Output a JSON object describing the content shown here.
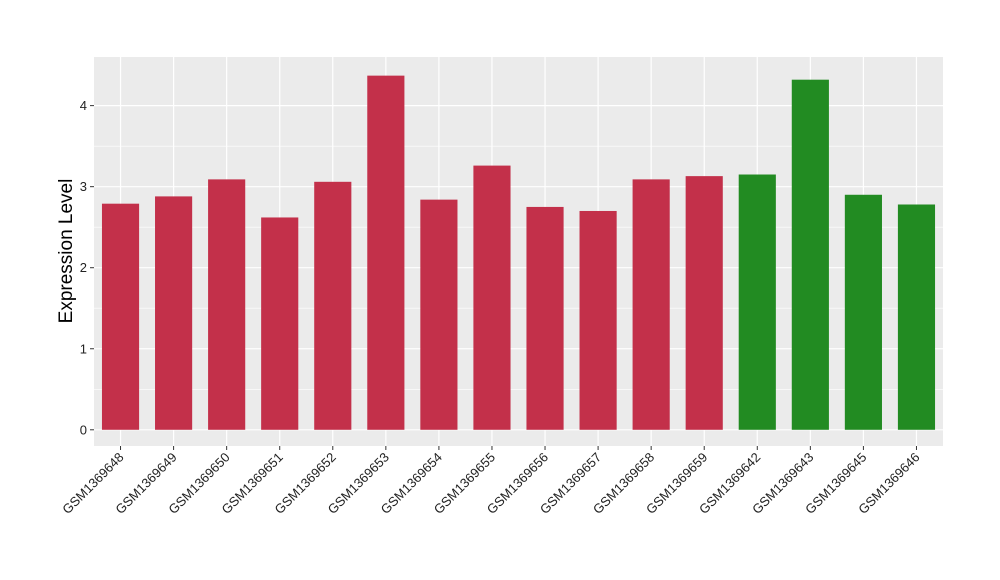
{
  "chart_data": {
    "type": "bar",
    "ylabel": "Expression Level",
    "xlabel": "",
    "ylim": [
      -0.2,
      4.6
    ],
    "yticks": [
      0,
      1,
      2,
      3,
      4
    ],
    "grid": true,
    "panel_background": "#EBEBEB",
    "grid_color": "#FFFFFF",
    "group_colors": {
      "red": "#C3304A",
      "green": "#228B22"
    },
    "categories": [
      "GSM1369648",
      "GSM1369649",
      "GSM1369650",
      "GSM1369651",
      "GSM1369652",
      "GSM1369653",
      "GSM1369654",
      "GSM1369655",
      "GSM1369656",
      "GSM1369657",
      "GSM1369658",
      "GSM1369659",
      "GSM1369642",
      "GSM1369643",
      "GSM1369645",
      "GSM1369646"
    ],
    "values": [
      2.79,
      2.88,
      3.09,
      2.62,
      3.06,
      4.37,
      2.84,
      3.26,
      2.75,
      2.7,
      3.09,
      3.13,
      3.15,
      4.32,
      2.9,
      2.78
    ],
    "bar_groups": [
      "red",
      "red",
      "red",
      "red",
      "red",
      "red",
      "red",
      "red",
      "red",
      "red",
      "red",
      "red",
      "green",
      "green",
      "green",
      "green"
    ]
  }
}
